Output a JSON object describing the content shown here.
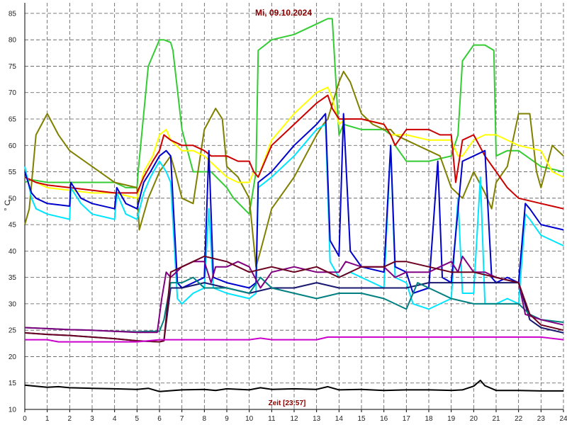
{
  "chart_data": {
    "type": "line",
    "title": "Mi, 09.10.2024",
    "ylabel": "° C",
    "xlabel": "Zeit [23:57]",
    "xlim": [
      0,
      24
    ],
    "ylim": [
      10,
      87
    ],
    "x_ticks": [
      "0",
      "1",
      "2",
      "3",
      "4",
      "5",
      "6",
      "7",
      "8",
      "9",
      "10",
      "11",
      "12",
      "13",
      "14",
      "15",
      "16",
      "17",
      "18",
      "19",
      "20",
      "21",
      "22",
      "23",
      "24"
    ],
    "y_ticks": [
      "10",
      "15",
      "20",
      "25",
      "30",
      "35",
      "40",
      "45",
      "50",
      "55",
      "60",
      "65",
      "70",
      "75",
      "80",
      "85"
    ],
    "grid": true,
    "colors": {
      "title": "#8b0000",
      "footer": "#8b0000",
      "grid": "#555555",
      "axis": "#000000"
    },
    "series": [
      {
        "color": "#33cc33",
        "x": [
          0,
          0.3,
          1,
          2,
          3,
          4,
          4.5,
          5,
          5.05,
          5.5,
          5.9,
          6,
          6.2,
          6.5,
          6.6,
          7,
          7.5,
          8,
          8.3,
          9,
          9.3,
          10,
          10.3,
          10.4,
          11,
          12,
          13,
          13.5,
          13.7,
          14,
          14.2,
          15,
          16,
          16.3,
          16.5,
          17,
          17.3,
          18,
          19,
          19.3,
          19.5,
          20,
          20.5,
          20.9,
          21,
          21.5,
          22,
          23,
          24
        ],
        "y": [
          53,
          53.5,
          53,
          53,
          53,
          53,
          52,
          52,
          55,
          75,
          79,
          80,
          80,
          79.5,
          78,
          63,
          55,
          55,
          55,
          52,
          50,
          47,
          55,
          78,
          80,
          81,
          83,
          84,
          84,
          62,
          64,
          63,
          63,
          62,
          60,
          57,
          57,
          57,
          58,
          62,
          76,
          79,
          79,
          78,
          58,
          59,
          59,
          56,
          55
        ]
      },
      {
        "color": "#808000",
        "x": [
          0,
          0.2,
          0.5,
          1,
          1.5,
          2,
          3,
          4,
          5,
          5.1,
          5.5,
          6,
          6.5,
          6.7,
          7,
          7.5,
          8,
          8.5,
          8.8,
          9,
          9.5,
          10,
          10.3,
          10.5,
          11,
          12,
          12.5,
          13,
          13.3,
          13.5,
          14,
          14.2,
          14.5,
          15,
          15.5,
          16,
          16.3,
          16.5,
          17,
          17.5,
          18,
          18.5,
          19,
          19.5,
          20,
          20.5,
          20.8,
          21,
          21.5,
          22,
          22.5,
          22.8,
          23,
          23.5,
          24
        ],
        "y": [
          45,
          48,
          62,
          66,
          62,
          59,
          56,
          53,
          52,
          44,
          50,
          55,
          58,
          55,
          50,
          49,
          63,
          67,
          65,
          56,
          54,
          50,
          37,
          40,
          48,
          54,
          58,
          62,
          64,
          65,
          72,
          74,
          72,
          66,
          64,
          63,
          63,
          62,
          61,
          60,
          59,
          58,
          52,
          50,
          55,
          51,
          48,
          53,
          56,
          66,
          66,
          55,
          52,
          60,
          58
        ]
      },
      {
        "color": "#ffff00",
        "x": [
          0,
          0.5,
          1,
          2,
          3,
          4,
          4.5,
          5,
          5.3,
          5.7,
          6,
          6.3,
          6.5,
          7,
          7.5,
          8,
          8.5,
          9,
          9.5,
          10,
          10.2,
          10.4,
          11,
          12,
          13,
          13.5,
          13.7,
          14,
          14.3,
          15,
          16,
          16.3,
          16.5,
          17,
          18,
          19,
          19.3,
          19.5,
          20,
          20.5,
          21,
          22,
          23,
          23.5,
          24
        ],
        "y": [
          54,
          53,
          52,
          51.5,
          51,
          51,
          50.5,
          50,
          55,
          58,
          62,
          63,
          61,
          59,
          59,
          58,
          56,
          54,
          53,
          53,
          55,
          54,
          61,
          66,
          70,
          71,
          69,
          64,
          65,
          65,
          64,
          62,
          62,
          62,
          61,
          61,
          58,
          58,
          61,
          62,
          62,
          60,
          59,
          55,
          54
        ]
      },
      {
        "color": "#cc0000",
        "x": [
          0,
          0.5,
          1,
          2,
          3,
          4,
          4.5,
          5,
          5.3,
          5.7,
          6,
          6.2,
          6.5,
          7,
          7.5,
          8,
          8.3,
          9,
          9.5,
          10,
          10.2,
          10.4,
          11,
          12,
          13,
          13.5,
          13.7,
          14,
          14.5,
          15,
          16,
          16.3,
          16.5,
          17,
          18,
          18.5,
          19,
          19.2,
          19.5,
          20,
          20.5,
          21,
          21.5,
          22,
          23,
          23.5,
          24
        ],
        "y": [
          54,
          53,
          52.5,
          52,
          51.5,
          51,
          51,
          51,
          54,
          57,
          59,
          62,
          61,
          60,
          60,
          59,
          58,
          58,
          57,
          57,
          55,
          54,
          60,
          64,
          68,
          69.5,
          67,
          65,
          65,
          65,
          64,
          62,
          60,
          63,
          63,
          62,
          62,
          53,
          61,
          62,
          58,
          55,
          52,
          50,
          49,
          48.5,
          48
        ]
      },
      {
        "color": "#00e5ff",
        "x": [
          0,
          0.3,
          0.5,
          1,
          2,
          2.05,
          2.5,
          3,
          4,
          4.1,
          4.5,
          5,
          5.3,
          5.6,
          6,
          6.3,
          6.5,
          6.8,
          7,
          7.5,
          8,
          8.2,
          8.4,
          9,
          10,
          10.3,
          10.4,
          11,
          12,
          13,
          13.4,
          13.6,
          14,
          14.5,
          15,
          16,
          16.3,
          16.5,
          17,
          17.3,
          18,
          19,
          19.3,
          19.5,
          20,
          20.3,
          20.5,
          21,
          21.5,
          22,
          22.3,
          22.5,
          23,
          24
        ],
        "y": [
          56,
          50,
          48,
          47,
          46,
          52,
          49,
          47,
          46,
          51,
          47,
          46,
          51,
          54,
          57,
          55,
          53,
          31,
          30,
          32,
          33,
          48,
          33,
          32,
          31,
          32,
          52,
          54,
          58,
          63,
          64,
          38,
          35,
          36,
          35,
          33,
          60,
          35,
          34,
          30,
          29,
          31,
          50,
          32,
          32,
          54,
          30,
          30,
          31,
          30,
          47,
          46,
          43,
          41
        ]
      },
      {
        "color": "#0000cc",
        "x": [
          0,
          0.3,
          0.5,
          1,
          2,
          2.05,
          2.5,
          3,
          4,
          4.1,
          4.5,
          5,
          5.3,
          5.6,
          6,
          6.3,
          6.5,
          6.8,
          7,
          7.5,
          8,
          8.2,
          8.4,
          9,
          10,
          10.3,
          10.4,
          11,
          12,
          13,
          13.4,
          13.6,
          14,
          14.2,
          14.5,
          15,
          16,
          16.3,
          16.5,
          17,
          17.3,
          18,
          18.4,
          18.6,
          19,
          19.5,
          20,
          20.5,
          20.8,
          21,
          21.5,
          22,
          22.3,
          22.5,
          23,
          24
        ],
        "y": [
          55,
          51,
          50,
          49,
          48.5,
          53,
          50,
          49,
          48,
          52,
          49,
          48,
          53,
          55,
          58,
          59,
          58,
          34,
          33,
          34,
          35,
          59,
          35,
          34,
          33,
          34,
          53,
          55,
          60,
          64,
          66,
          42,
          39,
          66,
          40,
          37,
          36,
          60,
          37,
          36,
          32,
          33,
          57,
          35,
          34,
          57,
          58,
          59,
          35,
          34,
          35,
          34,
          49,
          48,
          45,
          44
        ]
      },
      {
        "color": "#191970",
        "x": [
          0,
          1,
          2,
          3,
          4,
          5,
          6,
          6.2,
          6.5,
          7,
          8,
          9,
          10,
          11,
          12,
          13,
          14,
          15,
          16,
          17,
          18,
          19,
          20,
          21,
          22,
          22.5,
          23,
          24
        ],
        "y": [
          24.5,
          24.2,
          24,
          23.7,
          23.4,
          23,
          22.8,
          23,
          33,
          33,
          34,
          33,
          32,
          33,
          33,
          34,
          33,
          33,
          33,
          33,
          34,
          34,
          34,
          34,
          34,
          27,
          25.5,
          24.5
        ]
      },
      {
        "color": "#008080",
        "x": [
          0,
          1,
          2,
          3,
          4,
          5,
          5.5,
          6,
          6.2,
          6.5,
          7,
          7.5,
          8,
          9,
          10,
          10.5,
          11,
          12,
          13,
          14,
          15,
          16,
          17,
          17.5,
          18,
          19,
          20,
          21,
          22,
          22.5,
          23,
          24
        ],
        "y": [
          25.5,
          25.3,
          25.1,
          25,
          24.8,
          24.7,
          24.8,
          24.8,
          27,
          34,
          34,
          35,
          33,
          33,
          32,
          35,
          33,
          32,
          31,
          32,
          32,
          31,
          29,
          34,
          33,
          31,
          30,
          30,
          30,
          28,
          27,
          26.5
        ]
      },
      {
        "color": "#800080",
        "x": [
          0,
          1,
          2,
          3,
          4,
          5,
          5.9,
          6.1,
          6.3,
          6.5,
          7,
          7.5,
          8,
          8.3,
          8.5,
          9,
          9.5,
          10,
          10.5,
          11,
          12,
          13,
          14,
          14.3,
          15,
          16,
          16.5,
          17,
          18,
          18.5,
          19,
          19.3,
          19.5,
          20,
          20.5,
          21,
          22,
          22.3,
          23,
          24
        ],
        "y": [
          25.5,
          25.3,
          25.1,
          25,
          24.8,
          24.6,
          24.6,
          31,
          36,
          35,
          37,
          38,
          38,
          34,
          37,
          37,
          38,
          37,
          33,
          36,
          37,
          36,
          36,
          38,
          37,
          37,
          35,
          36,
          36,
          37,
          38,
          36,
          39,
          36,
          36,
          35,
          34,
          28,
          27,
          26
        ]
      },
      {
        "color": "#6b0020",
        "x": [
          0,
          1,
          2,
          3,
          4,
          5,
          6,
          6.2,
          6.5,
          7,
          8,
          9,
          10,
          11,
          12,
          13,
          14,
          15,
          16,
          16.5,
          17,
          18,
          19,
          20,
          21,
          22,
          22.5,
          23,
          24
        ],
        "y": [
          24.5,
          24.2,
          24,
          23.7,
          23.4,
          23,
          22.8,
          23,
          36,
          37,
          39,
          38,
          36,
          37,
          36,
          37,
          35,
          37,
          37,
          38,
          38,
          37,
          36,
          36,
          35,
          34,
          28,
          26,
          25
        ]
      },
      {
        "color": "#cc00cc",
        "x": [
          0,
          1,
          1.5,
          2,
          3,
          4,
          5,
          6,
          7,
          8,
          9,
          10,
          10.5,
          11,
          12,
          13,
          13.5,
          14,
          15,
          16,
          17,
          18,
          19,
          20,
          21,
          22,
          22.5,
          23,
          24
        ],
        "y": [
          23.2,
          23.2,
          22.8,
          22.8,
          22.8,
          22.8,
          22.8,
          23.2,
          23.2,
          23.2,
          23.2,
          23.2,
          23.5,
          23.2,
          23.2,
          23.2,
          23.7,
          23.7,
          23.7,
          23.7,
          23.7,
          23.7,
          23.7,
          23.7,
          23.7,
          23.7,
          23.7,
          23.7,
          23.2
        ]
      },
      {
        "color": "#000000",
        "x": [
          0,
          0.5,
          1,
          1.5,
          2,
          3,
          4,
          5,
          5.5,
          6,
          7,
          8,
          8.5,
          9,
          10,
          10.5,
          11,
          12,
          13,
          13.5,
          14,
          15,
          16,
          17,
          18,
          19,
          19.5,
          20,
          20.3,
          20.5,
          21,
          22,
          23,
          24
        ],
        "y": [
          14.6,
          14.4,
          14.2,
          14.3,
          14.1,
          14,
          13.9,
          13.8,
          14,
          13.4,
          13.7,
          13.8,
          13.6,
          13.9,
          13.7,
          14.1,
          13.8,
          13.9,
          13.8,
          14.3,
          13.7,
          13.8,
          13.6,
          13.7,
          13.7,
          13.6,
          13.7,
          14.4,
          15.5,
          14.5,
          13.6,
          13.6,
          13.5,
          13.5
        ]
      }
    ]
  }
}
